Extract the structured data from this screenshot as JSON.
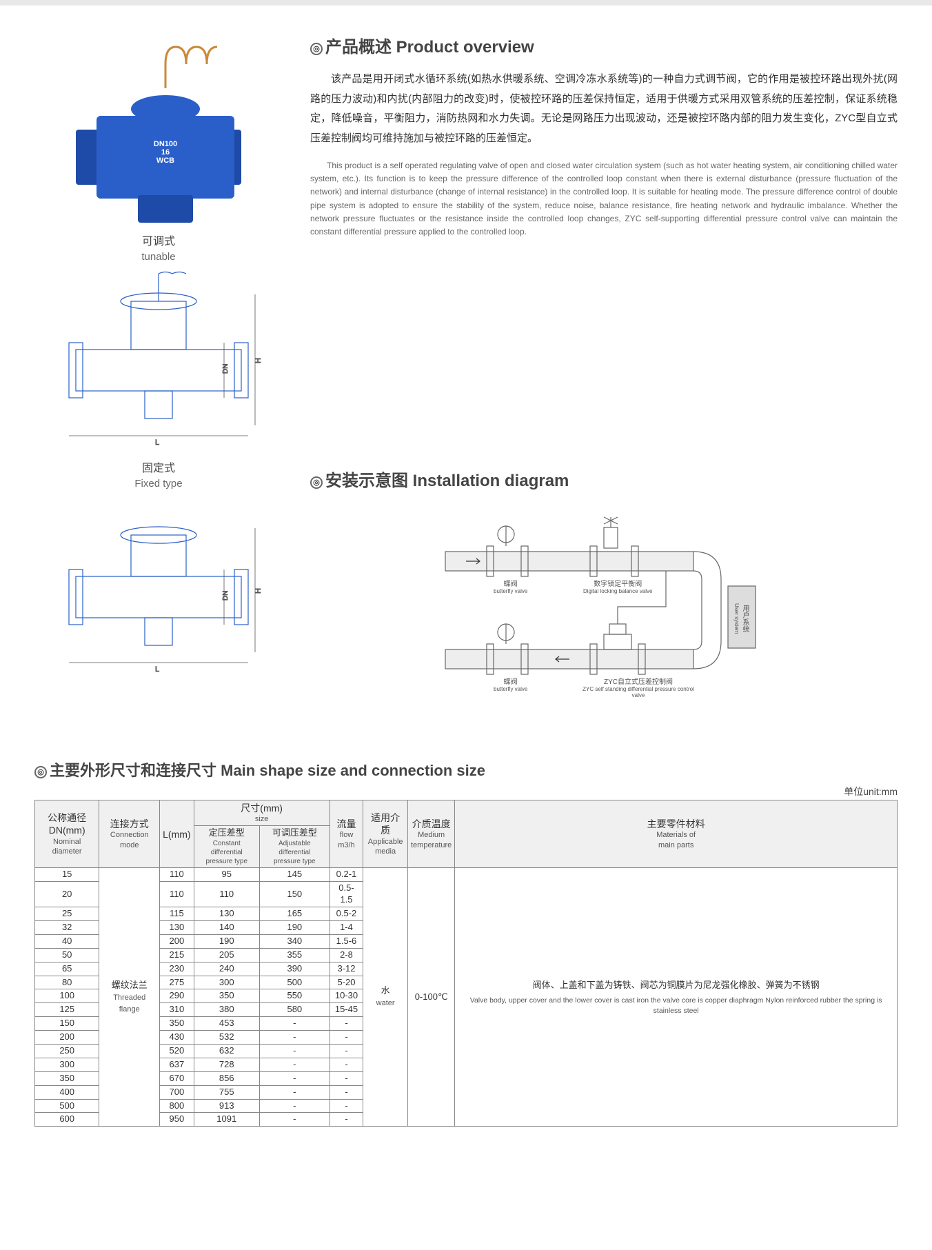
{
  "overview_heading": "产品概述 Product overview",
  "overview_cn": "该产品是用开闭式水循环系统(如热水供暖系统、空调冷冻水系统等)的一种自力式调节阀，它的作用是被控环路出现外扰(网路的压力波动)和内扰(内部阻力的改变)时，使被控环路的压差保持恒定，适用于供暖方式采用双管系统的压差控制，保证系统稳定，降低噪音，平衡阻力，消防热网和水力失调。无论是网路压力出现波动，还是被控环路内部的阻力发生变化，ZYC型自立式压差控制阀均可维持施加与被控环路的压差恒定。",
  "overview_en": "This product is a self operated regulating valve of open and closed water circulation system (such as hot water heating system, air conditioning chilled water system, etc.). Its function is to keep the pressure difference of the controlled loop constant when there is external disturbance (pressure fluctuation of the network) and internal disturbance (change of internal resistance) in the controlled loop. It is suitable for heating mode. The pressure difference control of double pipe system is adopted to ensure the stability of the system, reduce noise, balance resistance, fire heating network and hydraulic imbalance. Whether the network pressure fluctuates or the resistance inside the controlled loop changes, ZYC self-supporting differential pressure control valve can maintain the constant differential pressure applied to the controlled loop.",
  "tunable_cn": "可调式",
  "tunable_en": "tunable",
  "fixed_cn": "固定式",
  "fixed_en": "Fixed type",
  "install_heading": "安装示意图 Installation diagram",
  "valve_marking": "DN100\n16\nWCB",
  "install_labels": {
    "bf1": {
      "cn": "蝶阀",
      "en": "butterfly valve"
    },
    "dlb": {
      "cn": "数字锁定平衡阀",
      "en": "Digital locking balance valve"
    },
    "bf2": {
      "cn": "蝶阀",
      "en": "butterfly valve"
    },
    "zyc": {
      "cn": "ZYC自立式压差控制阀",
      "en": "ZYC self standing differential pressure control valve"
    },
    "user": {
      "cn": "用户系统",
      "en": "User system"
    }
  },
  "dim_heading": "主要外形尺寸和连接尺寸 Main shape size and connection size",
  "unit": "单位unit:mm",
  "headers": {
    "dn": {
      "cn": "公称通径\nDN(mm)",
      "en": "Nominal diameter"
    },
    "conn": {
      "cn": "连接方式",
      "en": "Connection\nmode"
    },
    "L": "L(mm)",
    "size": {
      "cn": "尺寸(mm)",
      "en": "size"
    },
    "const": {
      "cn": "定压差型",
      "en": "Constant differential\npressure type"
    },
    "adj": {
      "cn": "可调压差型",
      "en": "Adjustable differential\npressure type"
    },
    "flow": {
      "cn": "流量",
      "en": "flow\nm3/h"
    },
    "media": {
      "cn": "适用介质",
      "en": "Applicable\nmedia"
    },
    "temp": {
      "cn": "介质温度",
      "en": "Medium\ntemperature"
    },
    "mat": {
      "cn": "主要零件材料",
      "en": "Materials of\nmain parts"
    }
  },
  "conn_value": {
    "cn": "螺纹法兰",
    "en": "Threaded flange"
  },
  "media_value": {
    "cn": "水",
    "en": "water"
  },
  "temp_value": "0-100℃",
  "mat_value": {
    "cn": "阀体、上盖和下盖为铸铁、阀芯为铜膜片为尼龙强化橡胶、弹簧为不锈钢",
    "en": "Valve body, upper cover and the lower cover is cast iron the valve core is copper diaphragm Nylon reinforced rubber the spring is stainless steel"
  },
  "rows": [
    {
      "dn": "15",
      "L": "110",
      "c": "95",
      "a": "145",
      "f": "0.2-1"
    },
    {
      "dn": "20",
      "L": "110",
      "c": "110",
      "a": "150",
      "f": "0.5-1.5"
    },
    {
      "dn": "25",
      "L": "115",
      "c": "130",
      "a": "165",
      "f": "0.5-2"
    },
    {
      "dn": "32",
      "L": "130",
      "c": "140",
      "a": "190",
      "f": "1-4"
    },
    {
      "dn": "40",
      "L": "200",
      "c": "190",
      "a": "340",
      "f": "1.5-6"
    },
    {
      "dn": "50",
      "L": "215",
      "c": "205",
      "a": "355",
      "f": "2-8"
    },
    {
      "dn": "65",
      "L": "230",
      "c": "240",
      "a": "390",
      "f": "3-12"
    },
    {
      "dn": "80",
      "L": "275",
      "c": "300",
      "a": "500",
      "f": "5-20"
    },
    {
      "dn": "100",
      "L": "290",
      "c": "350",
      "a": "550",
      "f": "10-30"
    },
    {
      "dn": "125",
      "L": "310",
      "c": "380",
      "a": "580",
      "f": "15-45"
    },
    {
      "dn": "150",
      "L": "350",
      "c": "453",
      "a": "-",
      "f": "-"
    },
    {
      "dn": "200",
      "L": "430",
      "c": "532",
      "a": "-",
      "f": "-"
    },
    {
      "dn": "250",
      "L": "520",
      "c": "632",
      "a": "-",
      "f": "-"
    },
    {
      "dn": "300",
      "L": "637",
      "c": "728",
      "a": "-",
      "f": "-"
    },
    {
      "dn": "350",
      "L": "670",
      "c": "856",
      "a": "-",
      "f": "-"
    },
    {
      "dn": "400",
      "L": "700",
      "c": "755",
      "a": "-",
      "f": "-"
    },
    {
      "dn": "500",
      "L": "800",
      "c": "913",
      "a": "-",
      "f": "-"
    },
    {
      "dn": "600",
      "L": "950",
      "c": "1091",
      "a": "-",
      "f": "-"
    }
  ],
  "colors": {
    "valve_blue": "#2a5fc9",
    "valve_dark": "#1e4aa8",
    "coil": "#c88a3a",
    "line": "#555",
    "header_bg": "#f0f0f0"
  }
}
